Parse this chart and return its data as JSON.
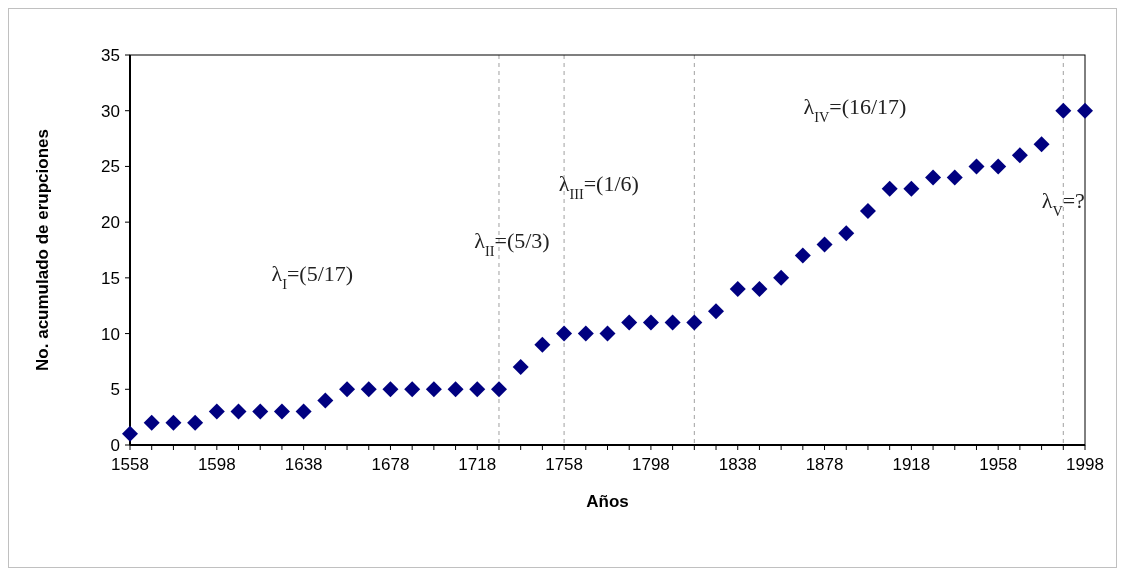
{
  "chart_data": {
    "type": "scatter",
    "xlabel": "Años",
    "ylabel": "No. acumulado de erupciones",
    "x": [
      1558,
      1568,
      1578,
      1588,
      1598,
      1608,
      1618,
      1628,
      1638,
      1648,
      1658,
      1668,
      1678,
      1688,
      1698,
      1708,
      1718,
      1728,
      1738,
      1748,
      1758,
      1768,
      1778,
      1788,
      1798,
      1808,
      1818,
      1828,
      1838,
      1848,
      1858,
      1868,
      1878,
      1888,
      1898,
      1908,
      1918,
      1928,
      1938,
      1948,
      1958,
      1968,
      1978,
      1988,
      1998
    ],
    "values": [
      1,
      2,
      2,
      2,
      3,
      3,
      3,
      3,
      3,
      4,
      5,
      5,
      5,
      5,
      5,
      5,
      5,
      5,
      7,
      9,
      10,
      10,
      10,
      11,
      11,
      11,
      11,
      12,
      14,
      14,
      15,
      17,
      18,
      19,
      21,
      23,
      23,
      24,
      24,
      25,
      25,
      26,
      27,
      30,
      30
    ],
    "color": "#000080",
    "marker": "diamond",
    "xlim": [
      1558,
      1998
    ],
    "xticks": [
      1558,
      {
        "value": 1568,
        "label": null
      },
      {
        "value": 1578,
        "label": null
      },
      {
        "value": 1588,
        "label": null
      },
      1598,
      {
        "value": 1608,
        "label": null
      },
      {
        "value": 1618,
        "label": null
      },
      {
        "value": 1628,
        "label": null
      },
      1638,
      {
        "value": 1648,
        "label": null
      },
      {
        "value": 1658,
        "label": null
      },
      {
        "value": 1668,
        "label": null
      },
      1678,
      {
        "value": 1688,
        "label": null
      },
      {
        "value": 1698,
        "label": null
      },
      {
        "value": 1708,
        "label": null
      },
      1718,
      {
        "value": 1728,
        "label": null
      },
      {
        "value": 1738,
        "label": null
      },
      {
        "value": 1748,
        "label": null
      },
      1758,
      {
        "value": 1768,
        "label": null
      },
      {
        "value": 1778,
        "label": null
      },
      {
        "value": 1788,
        "label": null
      },
      1798,
      {
        "value": 1808,
        "label": null
      },
      {
        "value": 1818,
        "label": null
      },
      {
        "value": 1828,
        "label": null
      },
      1838,
      {
        "value": 1848,
        "label": null
      },
      {
        "value": 1858,
        "label": null
      },
      {
        "value": 1868,
        "label": null
      },
      1878,
      {
        "value": 1888,
        "label": null
      },
      {
        "value": 1898,
        "label": null
      },
      {
        "value": 1908,
        "label": null
      },
      1918,
      {
        "value": 1928,
        "label": null
      },
      {
        "value": 1938,
        "label": null
      },
      {
        "value": 1948,
        "label": null
      },
      1958,
      {
        "value": 1968,
        "label": null
      },
      {
        "value": 1978,
        "label": null
      },
      {
        "value": 1988,
        "label": null
      },
      1998
    ],
    "ylim": [
      0,
      35
    ],
    "yticks": [
      0,
      5,
      10,
      15,
      20,
      25,
      30,
      35
    ],
    "grid": false,
    "ref_lines": [
      {
        "axis": "x",
        "value": 1728,
        "color": "#a0a0a0",
        "line_style": "dashed"
      },
      {
        "axis": "x",
        "value": 1758,
        "color": "#a0a0a0",
        "line_style": "dashed"
      },
      {
        "axis": "x",
        "value": 1818,
        "color": "#a0a0a0",
        "line_style": "dashed"
      },
      {
        "axis": "x",
        "value": 1988,
        "color": "#a0a0a0",
        "line_style": "dashed"
      }
    ],
    "annotations": [
      "λ$_{I}$=(5/17)",
      "λ$_{II}$=(5/3)",
      "λ$_{III}$=(1/6)",
      "λ$_{IV}$=(16/17)",
      "λ$_{V}$=?"
    ]
  }
}
